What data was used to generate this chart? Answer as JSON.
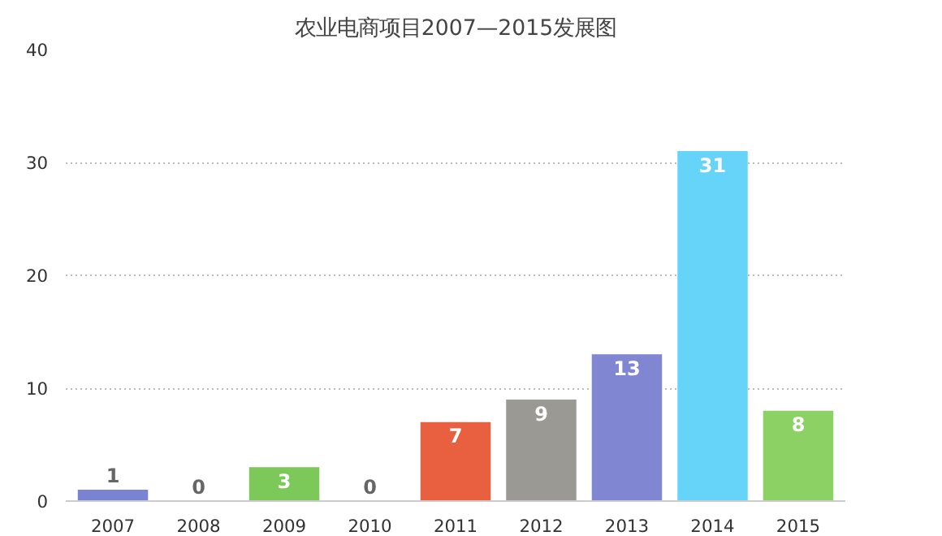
{
  "chart_data": {
    "type": "bar",
    "title": "农业电商项目2007—2015发展图",
    "categories": [
      "2007",
      "2008",
      "2009",
      "2010",
      "2011",
      "2012",
      "2013",
      "2014",
      "2015"
    ],
    "values": [
      1,
      0,
      3,
      0,
      7,
      9,
      13,
      31,
      8
    ],
    "colors": [
      "#7a83d2",
      "#7a83d2",
      "#7cc95a",
      "#7a83d2",
      "#e8603f",
      "#9a9994",
      "#8086d2",
      "#66d4f8",
      "#8bd164"
    ],
    "ylim": [
      0,
      40
    ],
    "yticks": [
      0,
      10,
      20,
      30,
      40
    ],
    "grid": "y",
    "data_labels": true
  }
}
